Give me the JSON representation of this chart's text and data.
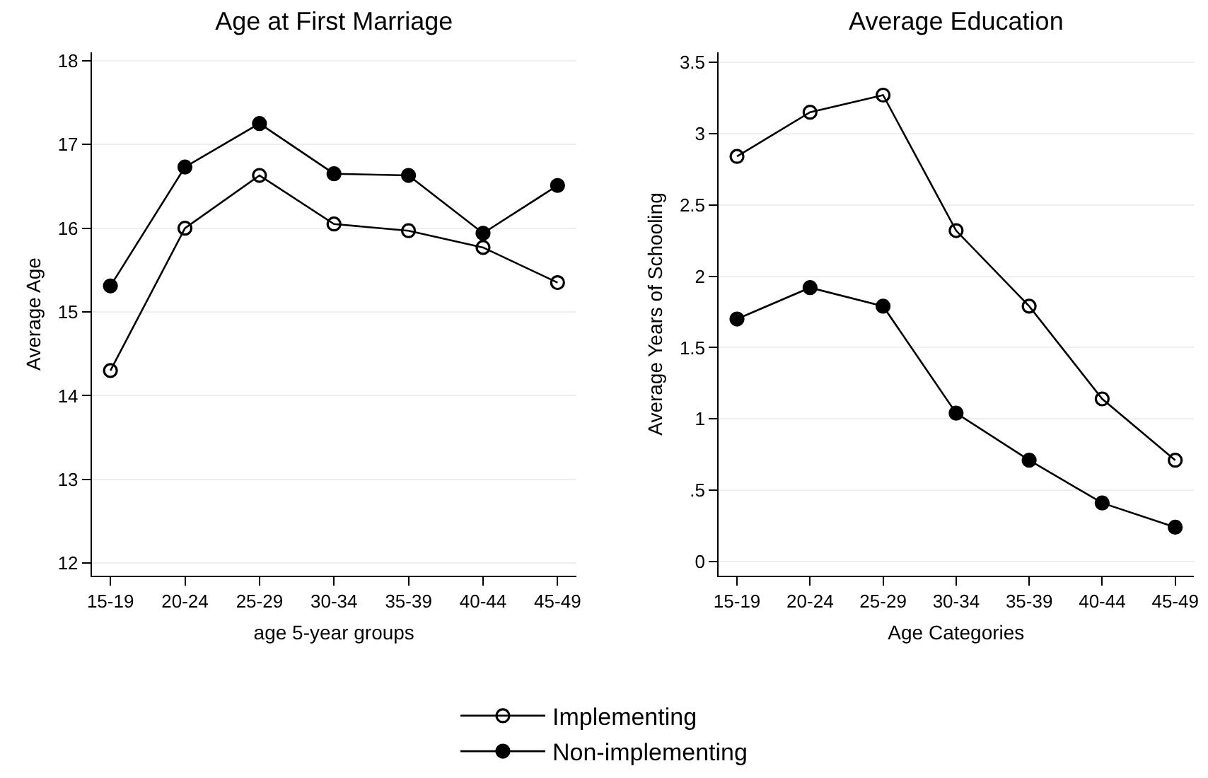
{
  "chart_data": [
    {
      "type": "line",
      "title": "Age at First Marriage",
      "xlabel": "age 5-year groups",
      "ylabel": "Average Age",
      "categories": [
        "15-19",
        "20-24",
        "25-29",
        "30-34",
        "35-39",
        "40-44",
        "45-49"
      ],
      "series": [
        {
          "name": "Implementing",
          "color": "#000000",
          "values": [
            14.3,
            16.0,
            16.63,
            16.05,
            15.97,
            15.77,
            15.35
          ]
        },
        {
          "name": "Non-implementing",
          "color": "#000000",
          "values": [
            15.31,
            16.73,
            17.25,
            16.65,
            16.63,
            15.94,
            16.51
          ]
        }
      ],
      "ylim": [
        11.85,
        18.1
      ],
      "yticks": [
        12,
        13,
        14,
        15,
        16,
        17,
        18
      ],
      "grid": "y",
      "legend": "bottom",
      "marker": "circle",
      "line_style": "solid"
    },
    {
      "type": "line",
      "title": "Average Education",
      "xlabel": "Age Categories",
      "ylabel": "Average Years of Schooling",
      "categories": [
        "15-19",
        "20-24",
        "25-29",
        "30-34",
        "35-39",
        "40-44",
        "45-49"
      ],
      "series": [
        {
          "color": "#000000",
          "values": [
            2.84,
            3.15,
            3.27,
            2.32,
            1.79,
            1.14,
            0.71
          ]
        },
        {
          "color": "#000000",
          "values": [
            1.7,
            1.92,
            1.79,
            1.04,
            0.71,
            0.41,
            0.24
          ]
        }
      ],
      "ylim": [
        -0.1,
        3.57
      ],
      "yticks": [
        0,
        {
          "value": 0.5,
          "label": ".5"
        },
        1,
        1.5,
        2,
        2.5,
        3,
        3.5
      ],
      "grid": "y",
      "legend": false,
      "marker": "circle",
      "line_style": "solid"
    }
  ]
}
